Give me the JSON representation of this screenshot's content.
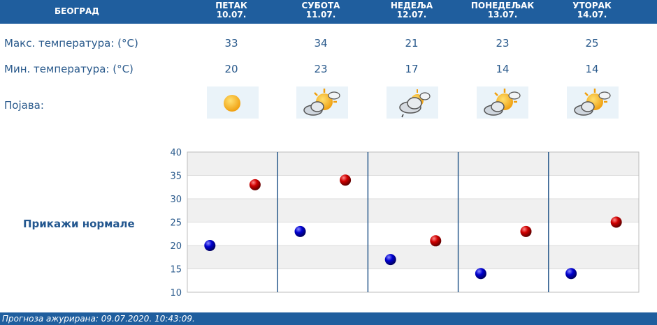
{
  "header": {
    "city": "БЕОГРАД",
    "days": [
      {
        "name": "ПЕТАК",
        "date": "10.07."
      },
      {
        "name": "СУБОТА",
        "date": "11.07."
      },
      {
        "name": "НЕДЕЉА",
        "date": "12.07."
      },
      {
        "name": "ПОНЕДЕЉАК",
        "date": "13.07."
      },
      {
        "name": "УТОРАК",
        "date": "14.07."
      }
    ]
  },
  "rows": {
    "max_label": "Макс. температура: (°C)",
    "min_label": "Мин. температура: (°C)",
    "phenomenon_label": "Појава:"
  },
  "max_temps": [
    "33",
    "34",
    "21",
    "23",
    "25"
  ],
  "min_temps": [
    "20",
    "23",
    "17",
    "14",
    "14"
  ],
  "icons": [
    "sun-icon",
    "partly-cloudy-icon",
    "cloudy-showers-icon",
    "partly-cloudy-icon",
    "partly-cloudy-icon"
  ],
  "show_normals": "Прикажи нормале",
  "footer": "Прогноза ажурирана:  09.07.2020. 10:43:09.",
  "colors": {
    "header": "#1f5e9e",
    "text": "#2a5a8c",
    "max_marker": "#cc0000",
    "min_marker": "#0000cc"
  },
  "chart_data": {
    "type": "scatter",
    "categories": [
      "10.07.",
      "11.07.",
      "12.07.",
      "13.07.",
      "14.07."
    ],
    "series": [
      {
        "name": "max",
        "values": [
          33,
          34,
          21,
          23,
          25
        ],
        "color": "#cc0000"
      },
      {
        "name": "min",
        "values": [
          20,
          23,
          17,
          14,
          14
        ],
        "color": "#0000cc"
      }
    ],
    "yticks": [
      "40",
      "35",
      "30",
      "25",
      "20",
      "15",
      "10"
    ],
    "ylim": [
      10,
      40
    ],
    "grid": true
  }
}
